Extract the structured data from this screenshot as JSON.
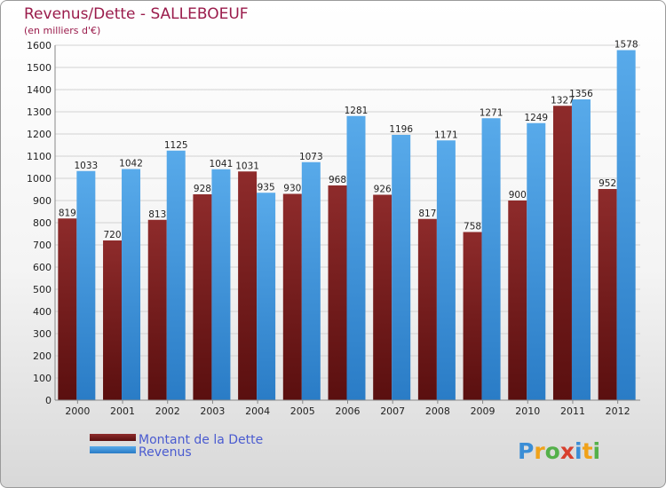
{
  "chart_data": {
    "type": "bar",
    "title": "Revenus/Dette - SALLEBOEUF",
    "subtitle": "(en milliers d'€)",
    "categories": [
      "2000",
      "2001",
      "2002",
      "2003",
      "2004",
      "2005",
      "2006",
      "2007",
      "2008",
      "2009",
      "2010",
      "2011",
      "2012"
    ],
    "series": [
      {
        "name": "Montant de la Dette",
        "color": "#7a1a1a",
        "values": [
          819,
          720,
          813,
          928,
          1031,
          930,
          968,
          926,
          817,
          758,
          900,
          1327,
          952
        ]
      },
      {
        "name": "Revenus",
        "color": "#3a8fd8",
        "values": [
          1033,
          1042,
          1125,
          1041,
          935,
          1073,
          1281,
          1196,
          1171,
          1271,
          1249,
          1356,
          1578
        ]
      }
    ],
    "ylim": [
      0,
      1600
    ],
    "ytick_step": 100,
    "xlabel": "",
    "ylabel": "",
    "grid": true,
    "legend_position": "bottom-left"
  },
  "branding": {
    "logo_text": "Proxiti"
  }
}
